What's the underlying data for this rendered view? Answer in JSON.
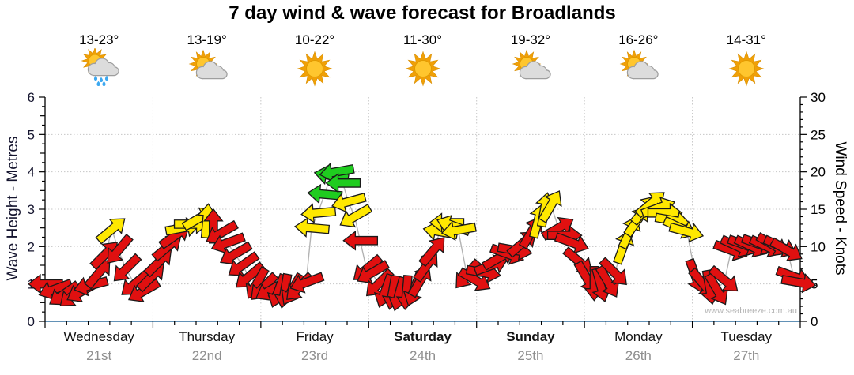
{
  "title": "7 day wind & wave forecast for Broadlands",
  "watermark": "www.seabreeze.com.au",
  "axes": {
    "left": {
      "title": "Wave Height - Metres",
      "ticks": [
        0,
        1,
        2,
        3,
        4,
        5,
        6
      ],
      "range": [
        0,
        6
      ]
    },
    "right": {
      "title": "Wind Speed - Knots",
      "ticks": [
        0,
        5,
        10,
        15,
        20,
        25,
        30
      ],
      "range": [
        0,
        30
      ]
    }
  },
  "days": [
    {
      "name": "Wednesday",
      "date": "21st",
      "temp": "13-23°",
      "icon": "sun-cloud-rain",
      "weekend": false
    },
    {
      "name": "Thursday",
      "date": "22nd",
      "temp": "13-19°",
      "icon": "sun-cloud",
      "weekend": false
    },
    {
      "name": "Friday",
      "date": "23rd",
      "temp": "10-22°",
      "icon": "sun",
      "weekend": false
    },
    {
      "name": "Saturday",
      "date": "24th",
      "temp": "11-30°",
      "icon": "sun",
      "weekend": true
    },
    {
      "name": "Sunday",
      "date": "25th",
      "temp": "19-32°",
      "icon": "sun-cloud",
      "weekend": true
    },
    {
      "name": "Monday",
      "date": "26th",
      "temp": "16-26°",
      "icon": "sun-cloud",
      "weekend": false
    },
    {
      "name": "Tuesday",
      "date": "27th",
      "temp": "14-31°",
      "icon": "sun",
      "weekend": false
    }
  ],
  "colors": {
    "r": "#e01010",
    "y": "#ffe800",
    "g": "#1fcc1f",
    "arrow_outline": "#1a1a1a",
    "axis_line_blue": "#2e6d9d",
    "grid": "#c6c6c6",
    "connector": "#b3b3b3"
  },
  "chart_data": {
    "type": "scatter",
    "title": "7 day wind & wave forecast for Broadlands",
    "xlabel_days": [
      "Wednesday 21st",
      "Thursday 22nd",
      "Friday 23rd",
      "Saturday 24th",
      "Sunday 25th",
      "Monday 26th",
      "Tuesday 27th"
    ],
    "ylabel_left": "Wave Height - Metres",
    "ylabel_right": "Wind Speed - Knots",
    "ylim_left": [
      0,
      6
    ],
    "ylim_right": [
      0,
      30
    ],
    "grid": "dotted horizontal at 1-5 m, dotted vertical at day boundaries",
    "point_format": [
      "x_days_from_start",
      "wind_speed_knots",
      "arrow_rotation_deg_screen_0_is_right",
      "color_class"
    ],
    "arrows": [
      [
        0.0,
        5.0,
        180,
        "r"
      ],
      [
        0.09,
        4.3,
        160,
        "r"
      ],
      [
        0.17,
        3.6,
        145,
        "r"
      ],
      [
        0.26,
        3.5,
        140,
        "r"
      ],
      [
        0.34,
        4.0,
        150,
        "r"
      ],
      [
        0.42,
        4.8,
        165,
        "r"
      ],
      [
        0.5,
        6.5,
        -50,
        "r"
      ],
      [
        0.56,
        9.0,
        -45,
        "r"
      ],
      [
        0.62,
        12.3,
        -40,
        "y"
      ],
      [
        0.68,
        9.5,
        130,
        "r"
      ],
      [
        0.75,
        7.0,
        135,
        "r"
      ],
      [
        0.83,
        5.0,
        140,
        "r"
      ],
      [
        0.91,
        4.0,
        150,
        "r"
      ],
      [
        0.99,
        6.0,
        -45,
        "r"
      ],
      [
        1.06,
        8.0,
        -45,
        "r"
      ],
      [
        1.14,
        10.0,
        -40,
        "r"
      ],
      [
        1.21,
        11.5,
        -35,
        "r"
      ],
      [
        1.28,
        12.5,
        -10,
        "y"
      ],
      [
        1.36,
        13.0,
        0,
        "y"
      ],
      [
        1.43,
        13.8,
        -30,
        "y"
      ],
      [
        1.5,
        13.5,
        -85,
        "y"
      ],
      [
        1.56,
        12.8,
        -90,
        "r"
      ],
      [
        1.63,
        11.8,
        150,
        "r"
      ],
      [
        1.69,
        10.5,
        160,
        "r"
      ],
      [
        1.76,
        9.0,
        150,
        "r"
      ],
      [
        1.83,
        7.5,
        145,
        "r"
      ],
      [
        1.89,
        6.0,
        140,
        "r"
      ],
      [
        1.96,
        5.0,
        120,
        "r"
      ],
      [
        2.02,
        4.5,
        135,
        "r"
      ],
      [
        2.09,
        4.2,
        150,
        "r"
      ],
      [
        2.16,
        4.0,
        110,
        "r"
      ],
      [
        2.22,
        4.0,
        100,
        "r"
      ],
      [
        2.29,
        4.2,
        120,
        "r"
      ],
      [
        2.35,
        4.5,
        135,
        "r"
      ],
      [
        2.42,
        5.2,
        160,
        "r"
      ],
      [
        2.47,
        12.5,
        185,
        "y"
      ],
      [
        2.53,
        14.5,
        175,
        "y"
      ],
      [
        2.59,
        17.0,
        185,
        "g"
      ],
      [
        2.65,
        19.5,
        190,
        "g"
      ],
      [
        2.7,
        20.0,
        170,
        "g"
      ],
      [
        2.76,
        18.5,
        180,
        "g"
      ],
      [
        2.81,
        16.0,
        165,
        "y"
      ],
      [
        2.87,
        14.0,
        150,
        "y"
      ],
      [
        2.92,
        10.8,
        180,
        "r"
      ],
      [
        2.98,
        7.0,
        140,
        "r"
      ],
      [
        3.03,
        6.5,
        150,
        "r"
      ],
      [
        3.09,
        5.0,
        135,
        "r"
      ],
      [
        3.15,
        4.0,
        110,
        "r"
      ],
      [
        3.22,
        3.8,
        100,
        "r"
      ],
      [
        3.28,
        3.6,
        105,
        "r"
      ],
      [
        3.35,
        3.8,
        95,
        "r"
      ],
      [
        3.42,
        4.2,
        110,
        "r"
      ],
      [
        3.48,
        5.5,
        -60,
        "r"
      ],
      [
        3.54,
        7.5,
        -55,
        "r"
      ],
      [
        3.6,
        9.5,
        -50,
        "r"
      ],
      [
        3.66,
        12.0,
        190,
        "y"
      ],
      [
        3.72,
        13.2,
        180,
        "y"
      ],
      [
        3.78,
        12.8,
        200,
        "y"
      ],
      [
        3.83,
        12.2,
        170,
        "y"
      ],
      [
        3.91,
        6.2,
        130,
        "r"
      ],
      [
        3.99,
        5.5,
        30,
        "r"
      ],
      [
        4.07,
        6.5,
        10,
        "r"
      ],
      [
        4.14,
        7.5,
        -20,
        "r"
      ],
      [
        4.21,
        8.5,
        -30,
        "r"
      ],
      [
        4.29,
        9.0,
        20,
        "r"
      ],
      [
        4.36,
        9.5,
        10,
        "r"
      ],
      [
        4.43,
        10.5,
        -40,
        "r"
      ],
      [
        4.51,
        12.0,
        -60,
        "r"
      ],
      [
        4.57,
        13.5,
        -75,
        "y"
      ],
      [
        4.63,
        15.0,
        -80,
        "y"
      ],
      [
        4.69,
        15.5,
        -60,
        "y"
      ],
      [
        4.76,
        12.5,
        -30,
        "r"
      ],
      [
        4.82,
        11.5,
        0,
        "r"
      ],
      [
        4.89,
        10.5,
        20,
        "r"
      ],
      [
        4.95,
        8.0,
        40,
        "r"
      ],
      [
        5.02,
        5.8,
        60,
        "r"
      ],
      [
        5.09,
        5.0,
        90,
        "r"
      ],
      [
        5.15,
        4.8,
        75,
        "r"
      ],
      [
        5.22,
        5.2,
        60,
        "r"
      ],
      [
        5.28,
        6.5,
        45,
        "r"
      ],
      [
        5.36,
        10.0,
        -70,
        "y"
      ],
      [
        5.42,
        12.0,
        -65,
        "y"
      ],
      [
        5.49,
        13.5,
        -55,
        "y"
      ],
      [
        5.56,
        15.0,
        -50,
        "y"
      ],
      [
        5.62,
        15.8,
        -40,
        "y"
      ],
      [
        5.69,
        15.2,
        -20,
        "y"
      ],
      [
        5.75,
        14.5,
        0,
        "y"
      ],
      [
        5.82,
        13.5,
        10,
        "y"
      ],
      [
        5.89,
        12.5,
        25,
        "y"
      ],
      [
        5.95,
        12.0,
        15,
        "y"
      ],
      [
        6.03,
        6.0,
        70,
        "r"
      ],
      [
        6.1,
        5.0,
        50,
        "r"
      ],
      [
        6.16,
        4.5,
        80,
        "r"
      ],
      [
        6.23,
        4.2,
        60,
        "r"
      ],
      [
        6.3,
        5.5,
        40,
        "r"
      ],
      [
        6.36,
        9.5,
        20,
        "r"
      ],
      [
        6.42,
        10.0,
        25,
        "r"
      ],
      [
        6.49,
        10.2,
        20,
        "r"
      ],
      [
        6.55,
        10.0,
        25,
        "r"
      ],
      [
        6.62,
        10.3,
        20,
        "r"
      ],
      [
        6.69,
        10.0,
        25,
        "r"
      ],
      [
        6.75,
        10.2,
        30,
        "r"
      ],
      [
        6.82,
        10.0,
        25,
        "r"
      ],
      [
        6.88,
        9.5,
        30,
        "r"
      ],
      [
        6.94,
        6.0,
        20,
        "r"
      ],
      [
        6.99,
        5.2,
        10,
        "r"
      ]
    ]
  }
}
